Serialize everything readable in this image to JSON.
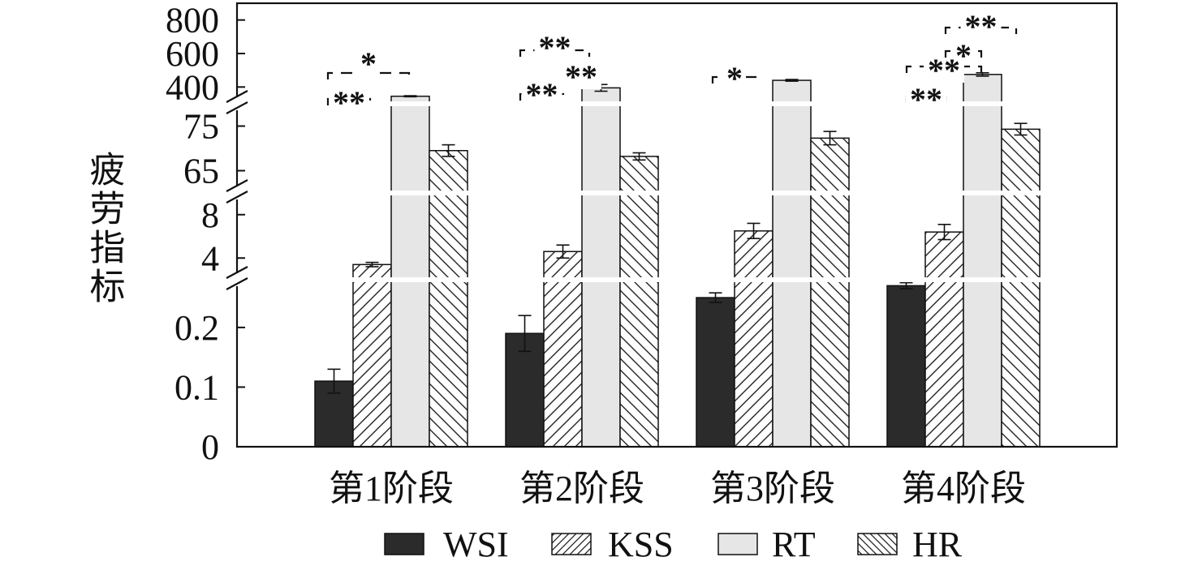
{
  "chart_data": {
    "type": "bar",
    "ylabel": "疲劳指标",
    "xlabel": "",
    "title": "",
    "categories": [
      "第1阶段",
      "第2阶段",
      "第3阶段",
      "第4阶段"
    ],
    "legend_position": "bottom",
    "grid": false,
    "y_axis_segments": [
      {
        "range": [
          0,
          0.28
        ],
        "ticks": [
          "0",
          "0.1",
          "0.2"
        ]
      },
      {
        "range": [
          2,
          10
        ],
        "ticks": [
          "4",
          "8"
        ]
      },
      {
        "range": [
          60,
          80
        ],
        "ticks": [
          "65",
          "75"
        ]
      },
      {
        "range": [
          300,
          900
        ],
        "ticks": [
          "400",
          "600",
          "800"
        ]
      }
    ],
    "series": [
      {
        "name": "WSI",
        "fill": "solid-dark",
        "values": [
          0.11,
          0.19,
          0.25,
          0.27
        ],
        "errors": [
          0.02,
          0.03,
          0.008,
          0.005
        ]
      },
      {
        "name": "KSS",
        "fill": "hatch-forward",
        "values": [
          3.4,
          4.6,
          6.5,
          6.4
        ],
        "errors": [
          0.2,
          0.6,
          0.7,
          0.7
        ]
      },
      {
        "name": "RT",
        "fill": "light-gray",
        "values": [
          345,
          395,
          440,
          475
        ],
        "errors": [
          3,
          20,
          5,
          10
        ]
      },
      {
        "name": "HR",
        "fill": "hatch-back",
        "values": [
          69.5,
          68.2,
          72.3,
          74.3
        ],
        "errors": [
          1.3,
          0.8,
          1.5,
          1.3
        ]
      }
    ],
    "significance": [
      {
        "group": 0,
        "marks": [
          "*",
          "**"
        ]
      },
      {
        "group": 1,
        "marks": [
          "**",
          "**",
          "**"
        ]
      },
      {
        "group": 2,
        "marks": [
          "*"
        ]
      },
      {
        "group": 3,
        "marks": [
          "**",
          "*",
          "**",
          "**"
        ]
      }
    ]
  },
  "colors": {
    "wsi": "#2b2b2b",
    "rt": "#e6e6e6",
    "stroke": "#111111"
  }
}
